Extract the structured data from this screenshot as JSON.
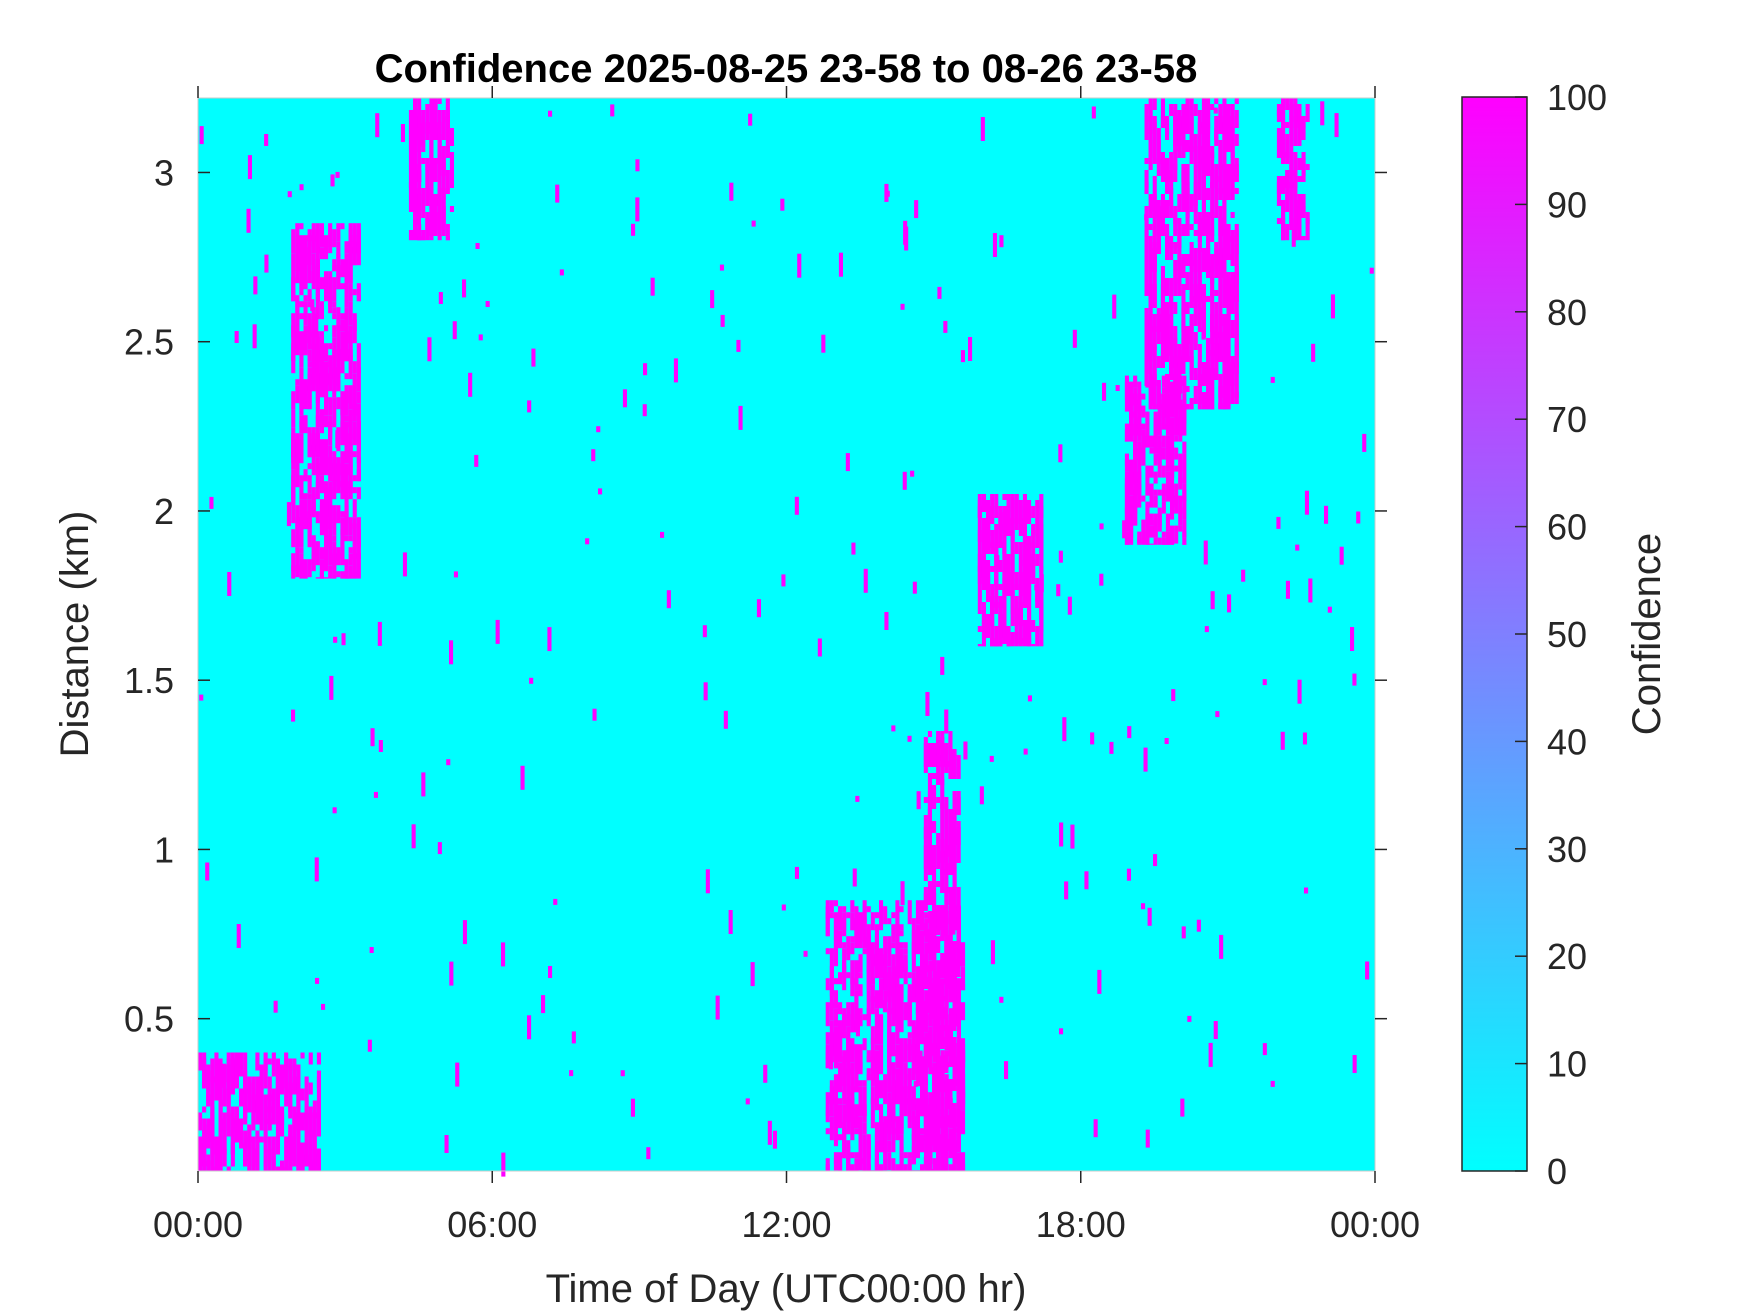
{
  "chart_data": {
    "type": "heatmap",
    "title": "Confidence 2025-08-25 23-58 to 08-26 23-58",
    "xlabel": "Time of Day (UTC00:00 hr)",
    "ylabel": "Distance (km)",
    "colorbar_label": "Confidence",
    "x_unit": "hours",
    "xlim": [
      0,
      24
    ],
    "ylim": [
      0.05,
      3.22
    ],
    "x_ticks": [
      0,
      6,
      12,
      18,
      24
    ],
    "x_tick_labels": [
      "00:00",
      "06:00",
      "12:00",
      "18:00",
      "00:00"
    ],
    "y_ticks": [
      0.5,
      1,
      1.5,
      2,
      2.5,
      3
    ],
    "y_tick_labels": [
      "0.5",
      "1",
      "1.5",
      "2",
      "2.5",
      "3"
    ],
    "color_range": [
      0,
      100
    ],
    "colorbar_ticks": [
      0,
      10,
      20,
      30,
      40,
      50,
      60,
      70,
      80,
      90,
      100
    ],
    "colorbar_tick_labels": [
      "0",
      "10",
      "20",
      "30",
      "40",
      "50",
      "60",
      "70",
      "80",
      "90",
      "100"
    ],
    "colormap": [
      "#00FFFF",
      "#FF00FF"
    ],
    "background_value": 0,
    "high_value": 100,
    "high_confidence_regions": [
      {
        "hour_start": 1.9,
        "hour_end": 3.3,
        "km_start": 1.8,
        "km_end": 2.85
      },
      {
        "hour_start": 4.3,
        "hour_end": 5.2,
        "km_start": 2.8,
        "km_end": 3.22
      },
      {
        "hour_start": 0.0,
        "hour_end": 2.5,
        "km_start": 0.05,
        "km_end": 0.4
      },
      {
        "hour_start": 12.8,
        "hour_end": 15.6,
        "km_start": 0.05,
        "km_end": 0.85
      },
      {
        "hour_start": 14.8,
        "hour_end": 15.5,
        "km_start": 0.05,
        "km_end": 1.35
      },
      {
        "hour_start": 15.9,
        "hour_end": 17.2,
        "km_start": 1.6,
        "km_end": 2.05
      },
      {
        "hour_start": 18.9,
        "hour_end": 20.1,
        "km_start": 1.9,
        "km_end": 2.4
      },
      {
        "hour_start": 19.3,
        "hour_end": 21.2,
        "km_start": 2.3,
        "km_end": 3.22
      },
      {
        "hour_start": 22.0,
        "hour_end": 22.6,
        "km_start": 2.8,
        "km_end": 3.22
      }
    ],
    "grid": false,
    "legend": "colorbar-right"
  },
  "colors": {
    "low": "#00FFFF",
    "high": "#FF00FF",
    "axis": "#262626"
  }
}
